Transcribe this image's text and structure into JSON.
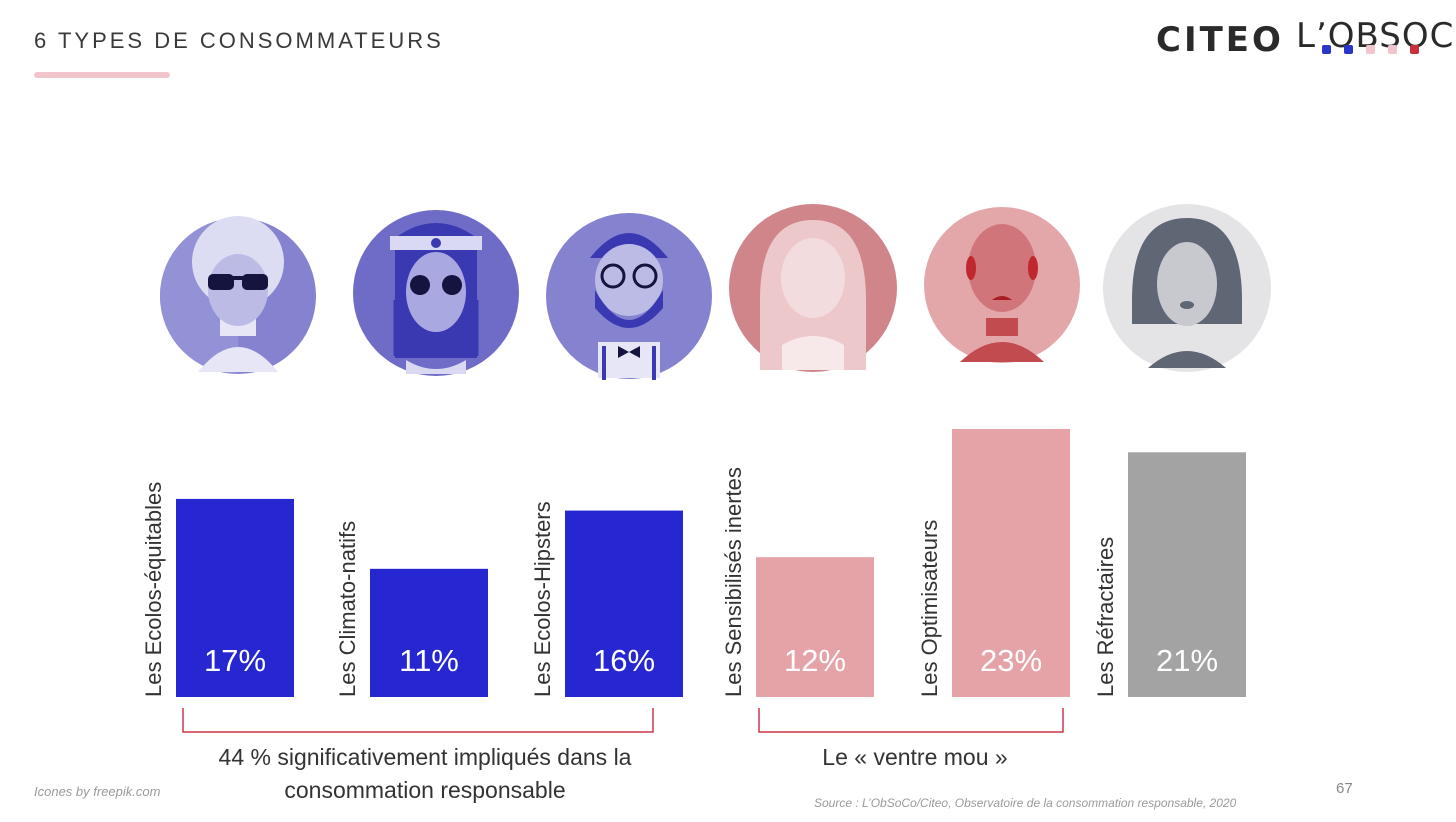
{
  "header": {
    "title": "6 TYPES DE CONSOMMATEURS",
    "logo_citeo": "CITEO",
    "logo_obsoco": "L’OBSOCO",
    "accent_color": "#f2c5cd"
  },
  "chart_data": {
    "type": "bar",
    "categories": [
      "Les Ecolos-équitables",
      "Les Climato-natifs",
      "Les Ecolos-Hipsters",
      "Les Sensibilisés inertes",
      "Les Optimisateurs",
      "Les Réfractaires"
    ],
    "values": [
      17,
      11,
      16,
      12,
      23,
      21
    ],
    "value_labels": [
      "17%",
      "11%",
      "16%",
      "12%",
      "23%",
      "21%"
    ],
    "colors": [
      "#2727d1",
      "#2727d1",
      "#2727d1",
      "#e5a3a8",
      "#e5a3a8",
      "#a3a3a3"
    ],
    "ylim": [
      0,
      23
    ]
  },
  "avatars": [
    {
      "icon": "afro-person-sunglasses-icon",
      "color": "#8583cf"
    },
    {
      "icon": "hippie-person-glasses-icon",
      "color": "#6e6cc7"
    },
    {
      "icon": "bearded-hipster-icon",
      "color": "#8583cf"
    },
    {
      "icon": "woman-long-hair-icon",
      "color": "#cf8589"
    },
    {
      "icon": "bald-person-icon",
      "color": "#e3a7aa"
    },
    {
      "icon": "bob-hair-person-icon",
      "color": "#e4e4e6"
    }
  ],
  "groups": [
    {
      "label_line1": "44 % significativement impliqués dans la",
      "label_line2": "consommation responsable"
    },
    {
      "label_line1": "Le « ventre mou »",
      "label_line2": ""
    }
  ],
  "footer": {
    "credit": "Icones by freepik.com",
    "source": "Source : L’ObSoCo/Citeo, Observatoire de la consommation responsable, 2020",
    "page_number": "67"
  }
}
